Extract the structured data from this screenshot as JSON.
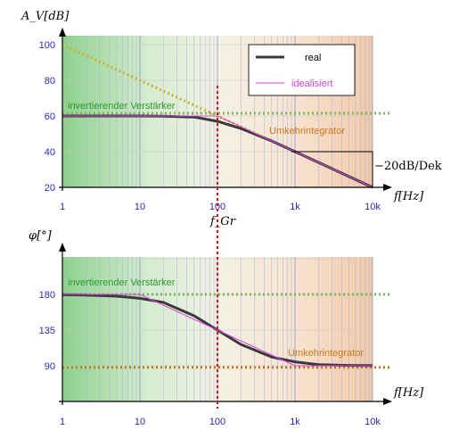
{
  "chart_data": [
    {
      "type": "line",
      "ylabel": "A_V[dB]",
      "xlabel": "f[Hz]",
      "x_scale": "log",
      "xlim": [
        1,
        10000
      ],
      "ylim": [
        20,
        110
      ],
      "x_ticks": [
        1,
        10,
        100,
        1000,
        10000
      ],
      "x_tick_labels": [
        "1",
        "10",
        "100",
        "1k",
        "10k"
      ],
      "y_ticks": [
        20,
        40,
        60,
        80,
        100
      ],
      "y_tick_labels": [
        "20",
        "40",
        "60",
        "80",
        "100"
      ],
      "grid": true,
      "series": [
        {
          "name": "real",
          "color": "#3a3a3a",
          "x": [
            1,
            2,
            5,
            10,
            20,
            50,
            100,
            200,
            500,
            1000,
            2000,
            5000,
            10000
          ],
          "y": [
            60,
            60,
            60,
            60,
            59.9,
            59.4,
            57.0,
            53.0,
            46.0,
            40.0,
            34.0,
            26.0,
            20.0
          ]
        },
        {
          "name": "idealisiert",
          "color": "#e040e0",
          "x": [
            1,
            100,
            10000
          ],
          "y": [
            60,
            60,
            20
          ]
        },
        {
          "color": "#c8b428",
          "style": "dotted",
          "x": [
            1,
            10000
          ],
          "y": [
            100,
            20
          ]
        },
        {
          "color": "#7cb85a",
          "style": "dotted",
          "x": [
            1,
            10000
          ],
          "y": [
            61.5,
            61.5
          ]
        }
      ],
      "annotations": [
        {
          "text": "invertierender Verstärker",
          "color": "#2a9a2a"
        },
        {
          "text": "Umkehrintegrator",
          "color": "#d07818"
        },
        {
          "text": "−20dB/Dek",
          "color": "#000000"
        }
      ],
      "legend_position": "top-right"
    },
    {
      "type": "line",
      "ylabel": "φ[°]",
      "xlabel": "f[Hz]",
      "x_scale": "log",
      "xlim": [
        1,
        10000
      ],
      "ylim": [
        45,
        225
      ],
      "x_ticks": [
        1,
        10,
        100,
        1000,
        10000
      ],
      "x_tick_labels": [
        "1",
        "10",
        "100",
        "1k",
        "10k"
      ],
      "y_ticks": [
        90,
        135,
        180
      ],
      "y_tick_labels": [
        "90",
        "135",
        "180"
      ],
      "grid": true,
      "series": [
        {
          "name": "real",
          "color": "#3a3a3a",
          "x": [
            1,
            2,
            5,
            10,
            20,
            50,
            100,
            200,
            500,
            1000,
            2000,
            5000,
            10000
          ],
          "y": [
            179.6,
            179.1,
            177.7,
            175.0,
            170.0,
            153.0,
            135.0,
            117.0,
            101.0,
            95.0,
            91.5,
            90.5,
            90.2
          ]
        },
        {
          "name": "idealisiert",
          "color": "#e040e0",
          "x": [
            1,
            10,
            1000,
            10000
          ],
          "y": [
            180,
            180,
            90,
            90
          ]
        },
        {
          "color": "#7cb85a",
          "style": "dotted",
          "x": [
            1,
            10000
          ],
          "y": [
            180,
            180
          ]
        },
        {
          "color": "#c07818",
          "style": "dotted",
          "x": [
            1,
            10000
          ],
          "y": [
            88,
            88
          ]
        }
      ],
      "annotations": [
        {
          "text": "invertierender Verstärker",
          "color": "#2a9a2a"
        },
        {
          "text": "Umkehrintegrator",
          "color": "#d07818"
        }
      ]
    }
  ],
  "marker": {
    "label": "f_Gr",
    "x": 100,
    "color": "#e01010"
  },
  "legend": {
    "real_label": "real",
    "ideal_label": "idealisiert"
  },
  "labels": {
    "top_y": "A_V[dB]",
    "bottom_y": "φ[°]",
    "x": "f[Hz]",
    "slope": "−20dB/Dek",
    "fgr": "f_Gr",
    "inv_top": "invertierender Verstärker",
    "int_top": "Umkehrintegrator",
    "inv_bottom": "invertierender Verstärker",
    "int_bottom": "Umkehrintegrator"
  }
}
